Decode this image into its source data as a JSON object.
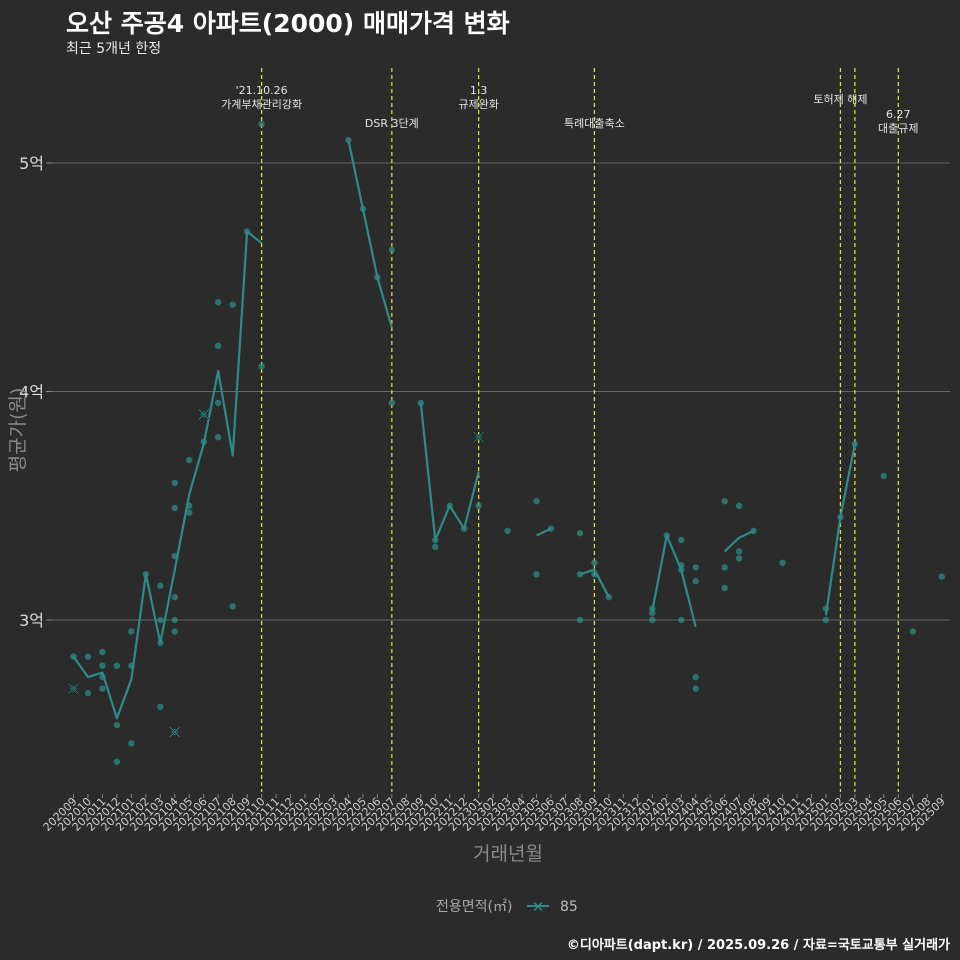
{
  "header": {
    "title": "오산 주공4 아파트(2000) 매매가격 변화",
    "subtitle": "최근 5개년 한정"
  },
  "footer": {
    "caption": "©디아파트(dapt.kr) / 2025.09.26 / 자료=국토교통부 실거래가"
  },
  "colors": {
    "background": "#2b2b2b",
    "series": "#2e8b87",
    "event_line": "#e8e83a",
    "grid": "#666666"
  },
  "chart_data": {
    "type": "line",
    "title": "오산 주공4 아파트(2000) 매매가격 변화",
    "subtitle": "최근 5개년 한정",
    "xlabel": "거래년월",
    "ylabel": "평균가(원)",
    "ylim": [
      2.25,
      5.4
    ],
    "grid": true,
    "y_ticks": [
      {
        "value": 3,
        "label": "3억"
      },
      {
        "value": 4,
        "label": "4억"
      },
      {
        "value": 5,
        "label": "5억"
      }
    ],
    "x_labels": [
      "202009",
      "202010",
      "202011",
      "202012",
      "202101",
      "202102",
      "202103",
      "202104",
      "202105",
      "202106",
      "202107",
      "202108",
      "202109",
      "202110",
      "202111",
      "202112",
      "202201",
      "202202",
      "202203",
      "202204",
      "202205",
      "202206",
      "202207",
      "202208",
      "202209",
      "202210",
      "202211",
      "202212",
      "202301",
      "202302",
      "202303",
      "202304",
      "202305",
      "202306",
      "202307",
      "202308",
      "202309",
      "202310",
      "202311",
      "202312",
      "202401",
      "202402",
      "202403",
      "202404",
      "202405",
      "202406",
      "202407",
      "202408",
      "202409",
      "202410",
      "202411",
      "202412",
      "202501",
      "202502",
      "202503",
      "202504",
      "202505",
      "202506",
      "202507",
      "202508",
      "202509"
    ],
    "legend": {
      "title": "전용면적(㎡)",
      "entries": [
        "85"
      ],
      "position": "bottom"
    },
    "series": [
      {
        "name": "85",
        "segments": [
          [
            [
              0,
              2.84
            ],
            [
              1,
              2.75
            ],
            [
              2,
              2.77
            ],
            [
              3,
              2.57
            ],
            [
              4,
              2.74
            ],
            [
              5,
              3.2
            ],
            [
              6,
              2.9
            ],
            [
              7,
              3.22
            ],
            [
              8,
              3.55
            ],
            [
              9,
              3.77
            ],
            [
              10,
              4.09
            ],
            [
              11,
              3.72
            ],
            [
              12,
              4.7
            ],
            [
              13,
              4.65
            ]
          ],
          [
            [
              19,
              5.1
            ],
            [
              20,
              4.8
            ],
            [
              21,
              4.5
            ],
            [
              22,
              4.28
            ]
          ],
          [
            [
              24,
              3.95
            ],
            [
              25,
              3.35
            ],
            [
              26,
              3.5
            ],
            [
              27,
              3.4
            ],
            [
              28,
              3.65
            ]
          ],
          [
            [
              32,
              3.37
            ],
            [
              33,
              3.4
            ]
          ],
          [
            [
              35,
              3.2
            ],
            [
              36,
              3.22
            ],
            [
              37,
              3.1
            ]
          ],
          [
            [
              40,
              3.04
            ],
            [
              41,
              3.37
            ],
            [
              42,
              3.22
            ],
            [
              43,
              2.97
            ]
          ],
          [
            [
              45,
              3.3
            ],
            [
              46,
              3.36
            ],
            [
              47,
              3.39
            ]
          ],
          [
            [
              52,
              3.02
            ],
            [
              53,
              3.45
            ],
            [
              54,
              3.77
            ]
          ]
        ]
      }
    ],
    "points": [
      [
        0,
        2.84
      ],
      [
        0,
        2.7
      ],
      [
        1,
        2.84
      ],
      [
        1,
        2.68
      ],
      [
        2,
        2.86
      ],
      [
        2,
        2.8
      ],
      [
        2,
        2.75
      ],
      [
        2,
        2.7
      ],
      [
        3,
        2.8
      ],
      [
        3,
        2.54
      ],
      [
        3,
        2.38
      ],
      [
        4,
        2.95
      ],
      [
        4,
        2.8
      ],
      [
        4,
        2.46
      ],
      [
        5,
        3.2
      ],
      [
        6,
        3.15
      ],
      [
        6,
        3.0
      ],
      [
        6,
        2.9
      ],
      [
        6,
        2.62
      ],
      [
        7,
        3.6
      ],
      [
        7,
        3.49
      ],
      [
        7,
        3.28
      ],
      [
        7,
        3.1
      ],
      [
        7,
        3.0
      ],
      [
        7,
        2.95
      ],
      [
        7,
        2.51
      ],
      [
        8,
        3.7
      ],
      [
        8,
        3.5
      ],
      [
        8,
        3.47
      ],
      [
        9,
        3.9
      ],
      [
        9,
        3.78
      ],
      [
        10,
        4.39
      ],
      [
        10,
        4.2
      ],
      [
        10,
        3.95
      ],
      [
        10,
        3.8
      ],
      [
        11,
        4.38
      ],
      [
        11,
        3.06
      ],
      [
        12,
        4.7
      ],
      [
        13,
        5.17
      ],
      [
        13,
        4.11
      ],
      [
        19,
        5.1
      ],
      [
        20,
        4.8
      ],
      [
        21,
        4.5
      ],
      [
        22,
        4.62
      ],
      [
        22,
        3.95
      ],
      [
        24,
        3.95
      ],
      [
        25,
        3.35
      ],
      [
        25,
        3.32
      ],
      [
        26,
        3.5
      ],
      [
        27,
        3.4
      ],
      [
        28,
        3.8
      ],
      [
        28,
        3.5
      ],
      [
        30,
        3.39
      ],
      [
        32,
        3.52
      ],
      [
        32,
        3.2
      ],
      [
        33,
        3.4
      ],
      [
        35,
        3.38
      ],
      [
        35,
        3.2
      ],
      [
        35,
        3.0
      ],
      [
        36,
        3.25
      ],
      [
        36,
        3.2
      ],
      [
        37,
        3.1
      ],
      [
        40,
        3.05
      ],
      [
        40,
        3.03
      ],
      [
        40,
        3.0
      ],
      [
        41,
        3.37
      ],
      [
        42,
        3.35
      ],
      [
        42,
        3.24
      ],
      [
        42,
        3.22
      ],
      [
        42,
        3.0
      ],
      [
        43,
        3.23
      ],
      [
        43,
        3.17
      ],
      [
        43,
        2.75
      ],
      [
        43,
        2.7
      ],
      [
        45,
        3.52
      ],
      [
        45,
        3.23
      ],
      [
        45,
        3.14
      ],
      [
        46,
        3.5
      ],
      [
        46,
        3.3
      ],
      [
        46,
        3.27
      ],
      [
        47,
        3.39
      ],
      [
        49,
        3.25
      ],
      [
        52,
        3.05
      ],
      [
        52,
        3.0
      ],
      [
        53,
        3.45
      ],
      [
        54,
        3.77
      ],
      [
        56,
        3.63
      ],
      [
        58,
        2.95
      ],
      [
        60,
        3.19
      ]
    ],
    "cross_points": [
      [
        0,
        2.7
      ],
      [
        7,
        2.51
      ],
      [
        9,
        3.9
      ],
      [
        28,
        3.8
      ]
    ],
    "events": [
      {
        "x": 13,
        "lines": [
          "'21.10.26",
          "가계부채관리강화"
        ],
        "level": "high"
      },
      {
        "x": 22,
        "lines": [
          "DSR 3단계"
        ],
        "level": "low"
      },
      {
        "x": 28,
        "lines": [
          "1.3",
          "규제완화"
        ],
        "level": "high"
      },
      {
        "x": 36,
        "lines": [
          "특례대출축소"
        ],
        "level": "low"
      },
      {
        "x": 53,
        "lines": [
          "토허제 해제"
        ],
        "level": "mid"
      },
      {
        "x": 54,
        "lines": [],
        "level": "mid"
      },
      {
        "x": 57,
        "lines": [
          "6.27",
          "대출규제"
        ],
        "level": "midlow"
      }
    ]
  }
}
